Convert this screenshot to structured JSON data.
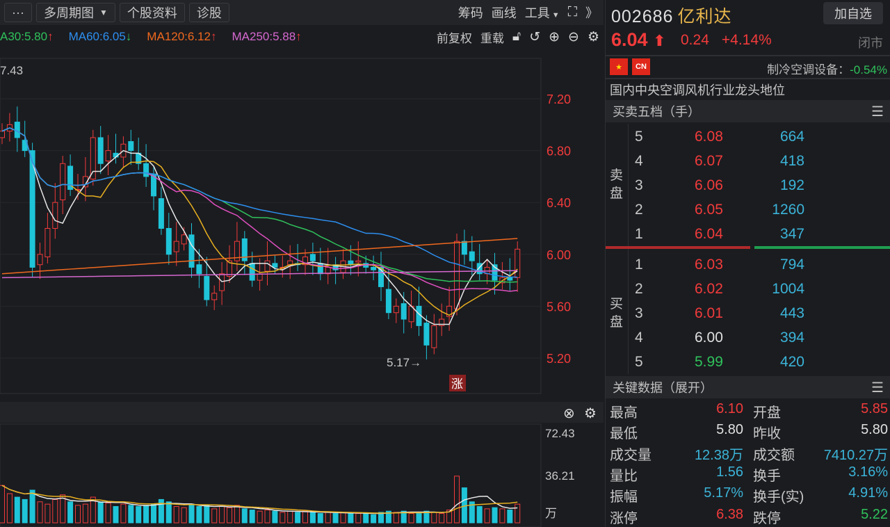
{
  "toolbar": {
    "more": "···",
    "period": "多周期图",
    "profile": "个股资料",
    "diagnose": "诊股",
    "chips": "筹码",
    "draw": "画线",
    "tools": "工具",
    "expand_icon": "expand-icon",
    "collapse": "》"
  },
  "ma_legend": [
    {
      "label": "A30:5.80",
      "dir": "↑",
      "color": "#2fc25b",
      "dircolor": "#f23b3b"
    },
    {
      "label": "MA60:6.05",
      "dir": "↓",
      "color": "#2d8ff0",
      "dircolor": "#2fc25b"
    },
    {
      "label": "MA120:6.12",
      "dir": "↑",
      "color": "#f0691e",
      "dircolor": "#f23b3b"
    },
    {
      "label": "MA250:5.88",
      "dir": "↑",
      "color": "#d668d0",
      "dircolor": "#f23b3b"
    }
  ],
  "chart_tools": {
    "adjust": "前复权",
    "reset": "重载"
  },
  "chart": {
    "type": "candlestick",
    "high_label": "7.43",
    "low_label": "5.17→",
    "limit_badge": "涨",
    "price_ticks": [
      "7.20",
      "6.80",
      "6.40",
      "6.00",
      "5.60",
      "5.20"
    ],
    "volume_ticks": [
      "72.43",
      "36.21",
      "万"
    ],
    "closes": [
      6.95,
      7.0,
      6.9,
      6.8,
      5.9,
      6.0,
      6.2,
      6.4,
      6.7,
      6.5,
      6.5,
      6.6,
      6.9,
      6.7,
      6.8,
      6.75,
      6.85,
      6.8,
      6.7,
      6.6,
      6.45,
      6.2,
      6.0,
      6.1,
      6.15,
      5.9,
      5.85,
      5.65,
      5.7,
      5.85,
      5.95,
      6.1,
      5.95,
      5.8,
      5.85,
      5.95,
      5.9,
      5.9,
      5.95,
      5.92,
      5.98,
      5.95,
      5.85,
      5.9,
      5.88,
      5.95,
      5.92,
      5.95,
      5.9,
      5.88,
      5.75,
      5.55,
      5.6,
      5.5,
      5.6,
      5.45,
      5.3,
      5.45,
      5.5,
      5.6,
      6.1,
      6.0,
      5.95,
      5.85,
      5.9,
      5.8,
      5.82,
      5.8,
      6.04
    ],
    "volumes": [
      32,
      25,
      22,
      20,
      28,
      18,
      16,
      20,
      24,
      18,
      15,
      16,
      22,
      18,
      17,
      14,
      16,
      15,
      14,
      15,
      16,
      20,
      18,
      14,
      13,
      16,
      14,
      15,
      12,
      14,
      13,
      15,
      12,
      11,
      10,
      11,
      10,
      9,
      10,
      9,
      10,
      9,
      8,
      9,
      8,
      9,
      8,
      8,
      8,
      7,
      9,
      10,
      9,
      10,
      8,
      9,
      10,
      9,
      8,
      11,
      40,
      30,
      18,
      14,
      12,
      13,
      12,
      11,
      16
    ],
    "ma_colors": {
      "ma5": "#e8e8e8",
      "ma10": "#e8b020",
      "ma20": "#e050c0",
      "ma30": "#2fc25b",
      "ma60": "#2d8ff0",
      "ma120": "#f0691e",
      "ma250": "#d668d0"
    },
    "up_color": "#f23b3b",
    "down_color": "#1fc4d8"
  },
  "quote": {
    "code": "002686",
    "name": "亿利达",
    "price": "6.04",
    "change": "0.24",
    "pct": "+4.14%",
    "status": "闭市",
    "add_watch": "加自选",
    "flag_cn": "CN",
    "industry": "制冷空调设备：",
    "industry_pct": "-0.54%",
    "description": "国内中央空调风机行业龙头地位"
  },
  "orderbook": {
    "title": "买卖五档（手）",
    "sell_label": "卖盘",
    "buy_label": "买盘",
    "asks": [
      {
        "lv": "5",
        "p": "6.08",
        "v": "664"
      },
      {
        "lv": "4",
        "p": "6.07",
        "v": "418"
      },
      {
        "lv": "3",
        "p": "6.06",
        "v": "192"
      },
      {
        "lv": "2",
        "p": "6.05",
        "v": "1260"
      },
      {
        "lv": "1",
        "p": "6.04",
        "v": "347"
      }
    ],
    "bids": [
      {
        "lv": "1",
        "p": "6.03",
        "v": "794"
      },
      {
        "lv": "2",
        "p": "6.02",
        "v": "1004"
      },
      {
        "lv": "3",
        "p": "6.01",
        "v": "443"
      },
      {
        "lv": "4",
        "p": "6.00",
        "v": "394"
      },
      {
        "lv": "5",
        "p": "5.99",
        "v": "420"
      }
    ]
  },
  "keydata": {
    "title": "关键数据（展开）",
    "rows": [
      {
        "l1": "最高",
        "v1": "6.10",
        "c1": "#f23b3b",
        "l2": "开盘",
        "v2": "5.85",
        "c2": "#f23b3b"
      },
      {
        "l1": "最低",
        "v1": "5.80",
        "c1": "#e0e0e0",
        "l2": "昨收",
        "v2": "5.80",
        "c2": "#e0e0e0"
      },
      {
        "l1": "成交量",
        "v1": "12.38万",
        "c1": "#3bb4d8",
        "l2": "成交额",
        "v2": "7410.27万",
        "c2": "#3bb4d8"
      },
      {
        "l1": "量比",
        "v1": "1.56",
        "c1": "#3bb4d8",
        "l2": "换手",
        "v2": "3.16%",
        "c2": "#3bb4d8"
      },
      {
        "l1": "振幅",
        "v1": "5.17%",
        "c1": "#3bb4d8",
        "l2": "换手(实)",
        "v2": "4.91%",
        "c2": "#3bb4d8"
      },
      {
        "l1": "涨停",
        "v1": "6.38",
        "c1": "#f23b3b",
        "l2": "跌停",
        "v2": "5.22",
        "c2": "#2fc25b"
      }
    ]
  }
}
